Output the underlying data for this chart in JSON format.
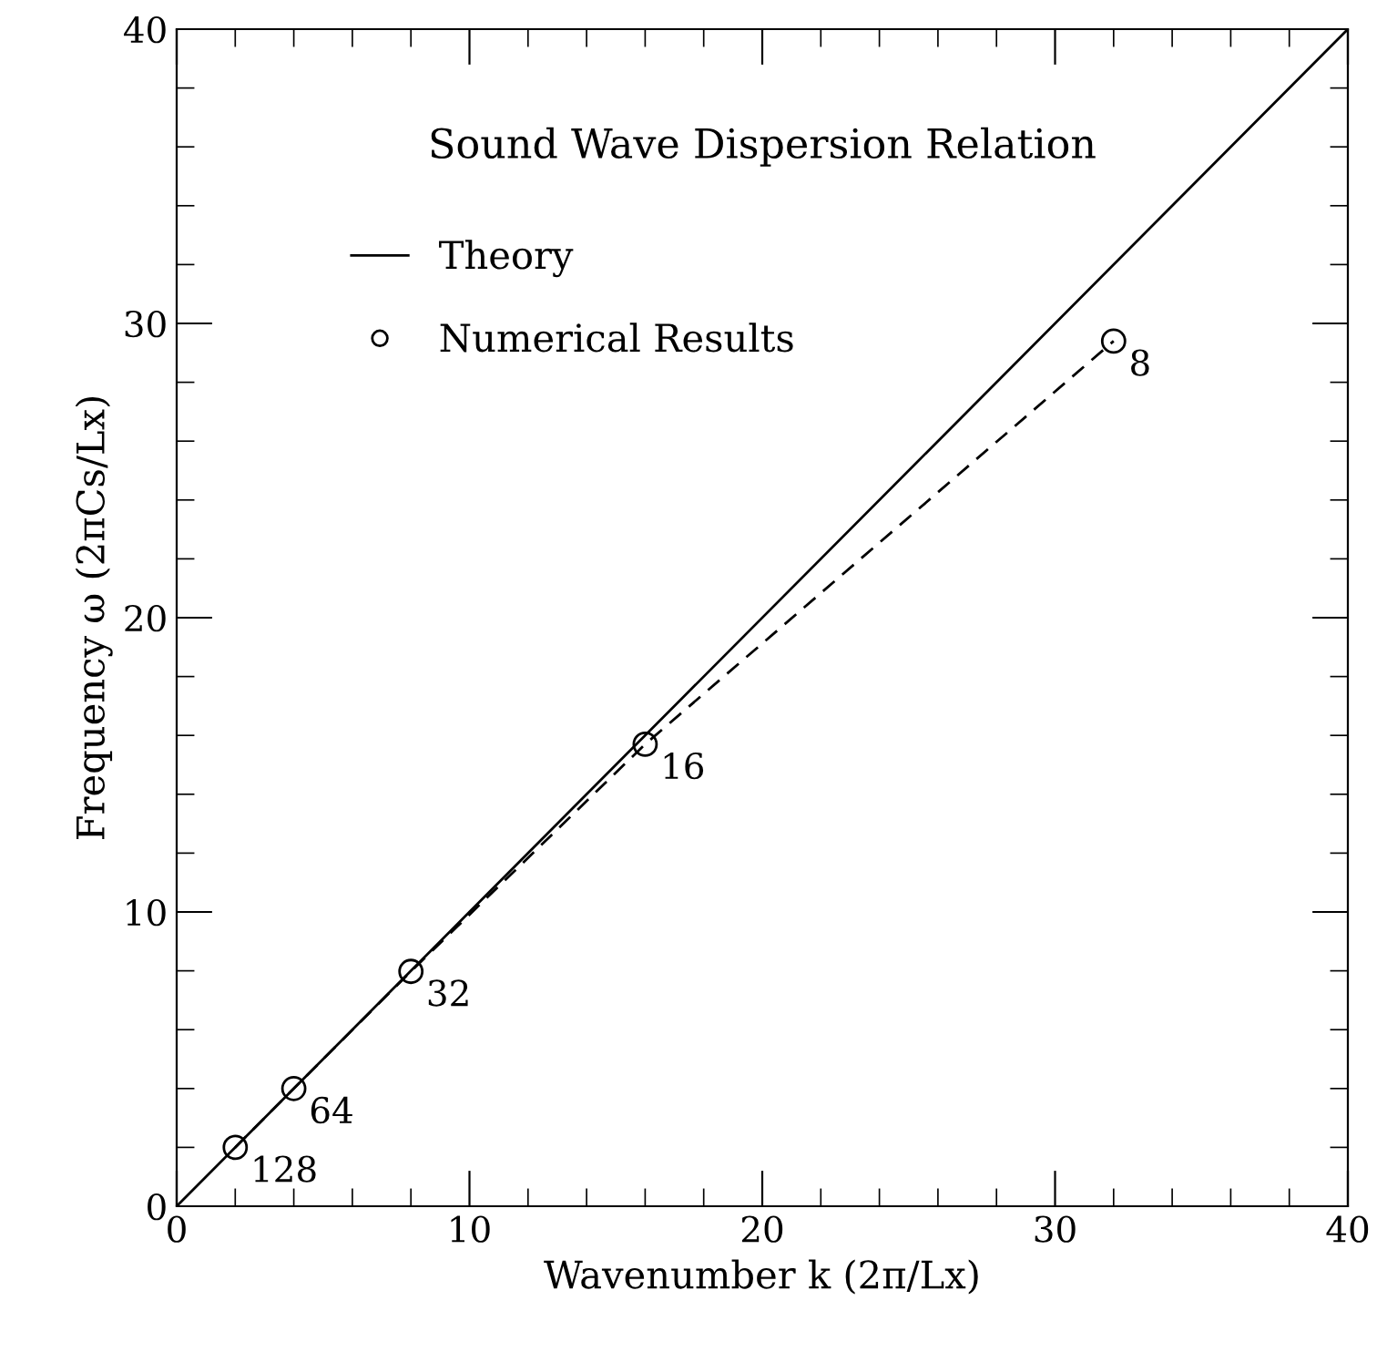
{
  "chart_data": {
    "type": "line",
    "title": "Sound Wave Dispersion Relation",
    "xlabel": "Wavenumber k (2π/Lx)",
    "ylabel": "Frequency ω (2πCs/Lx)",
    "series": [
      {
        "name": "Theory",
        "color": "#000000",
        "x": [
          0,
          40
        ],
        "values": [
          0,
          40
        ],
        "marker": "none",
        "line_style": "solid"
      },
      {
        "name": "Numerical Results",
        "color": "#000000",
        "x": [
          2,
          4,
          8,
          16,
          32
        ],
        "values": [
          2.0,
          4.0,
          7.98,
          15.7,
          29.4
        ],
        "marker": "circle",
        "line_style": "dashed"
      }
    ],
    "annotations": [
      {
        "text": "128",
        "x": 2,
        "y": 2.0
      },
      {
        "text": "64",
        "x": 4,
        "y": 4.0
      },
      {
        "text": "32",
        "x": 8,
        "y": 7.98
      },
      {
        "text": "16",
        "x": 16,
        "y": 15.7
      },
      {
        "text": "8",
        "x": 32,
        "y": 29.4
      }
    ],
    "xlim": [
      0,
      40
    ],
    "ylim": [
      0,
      40
    ],
    "xticks": [
      0,
      10,
      20,
      30,
      40
    ],
    "yticks": [
      0,
      10,
      20,
      30,
      40
    ],
    "grid": false,
    "legend": "top left"
  }
}
